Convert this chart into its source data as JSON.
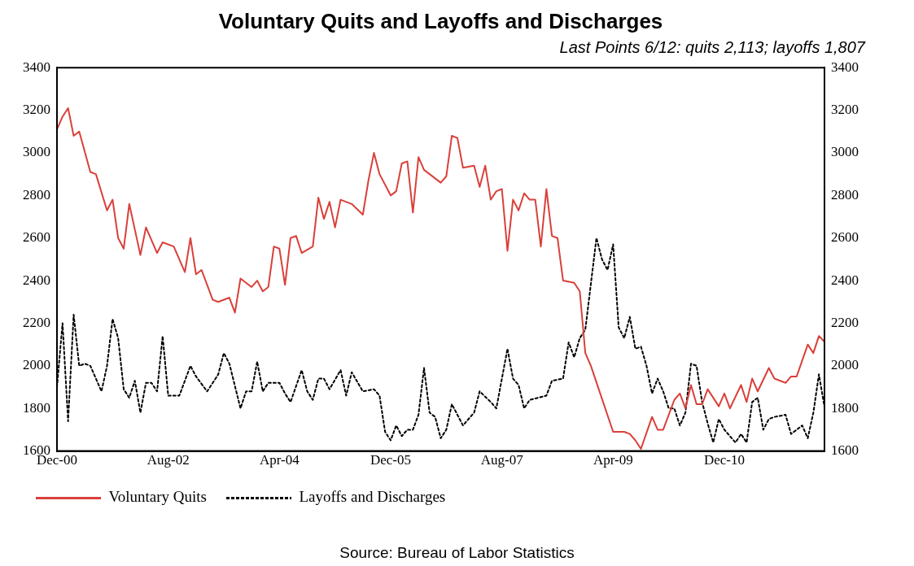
{
  "chart_data": {
    "type": "line",
    "title": "Voluntary Quits and Layoffs and Discharges",
    "subtitle": "Last Points 6/12: quits 2,113; layoffs 1,807",
    "annotations": [
      "Source: Bureau of Labor Statistics"
    ],
    "xlim": [
      "2000-12",
      "2012-06"
    ],
    "xticks": [
      {
        "value": "2000-12",
        "label": "Dec-00"
      },
      {
        "value": "2002-08",
        "label": "Aug-02"
      },
      {
        "value": "2004-04",
        "label": "Apr-04"
      },
      {
        "value": "2005-12",
        "label": "Dec-05"
      },
      {
        "value": "2007-08",
        "label": "Aug-07"
      },
      {
        "value": "2009-04",
        "label": "Apr-09"
      },
      {
        "value": "2010-12",
        "label": "Dec-10"
      }
    ],
    "ylim": [
      1600,
      3400
    ],
    "yticks": [
      1600,
      1800,
      2000,
      2200,
      2400,
      2600,
      2800,
      3000,
      3200,
      3400
    ],
    "y2lim": [
      1600,
      3400
    ],
    "y2ticks": [
      1600,
      1800,
      2000,
      2200,
      2400,
      2600,
      2800,
      3000,
      3200,
      3400
    ],
    "grid": false,
    "legend": "bottom left",
    "marker": "none",
    "series": [
      {
        "name": "Voluntary Quits",
        "color": "#d9403a",
        "line_style": "solid",
        "x": [
          "2000-12",
          "2001-01",
          "2001-02",
          "2001-03",
          "2001-04",
          "2001-06",
          "2001-07",
          "2001-09",
          "2001-10",
          "2001-11",
          "2001-12",
          "2002-01",
          "2002-03",
          "2002-04",
          "2002-06",
          "2002-07",
          "2002-09",
          "2002-11",
          "2002-12",
          "2003-01",
          "2003-02",
          "2003-04",
          "2003-05",
          "2003-07",
          "2003-08",
          "2003-09",
          "2003-11",
          "2003-12",
          "2004-01",
          "2004-02",
          "2004-03",
          "2004-04",
          "2004-05",
          "2004-06",
          "2004-07",
          "2004-08",
          "2004-10",
          "2004-11",
          "2004-12",
          "2005-01",
          "2005-02",
          "2005-03",
          "2005-05",
          "2005-07",
          "2005-08",
          "2005-09",
          "2005-10",
          "2005-12",
          "2006-01",
          "2006-02",
          "2006-03",
          "2006-04",
          "2006-05",
          "2006-06",
          "2006-07",
          "2006-09",
          "2006-10",
          "2006-11",
          "2006-12",
          "2007-01",
          "2007-03",
          "2007-04",
          "2007-05",
          "2007-06",
          "2007-07",
          "2007-08",
          "2007-09",
          "2007-10",
          "2007-11",
          "2007-12",
          "2008-01",
          "2008-02",
          "2008-03",
          "2008-04",
          "2008-05",
          "2008-06",
          "2008-07",
          "2008-09",
          "2008-10",
          "2008-11",
          "2008-12",
          "2009-04",
          "2009-06",
          "2009-07",
          "2009-08",
          "2009-09",
          "2009-11",
          "2009-12",
          "2010-01",
          "2010-03",
          "2010-04",
          "2010-05",
          "2010-06",
          "2010-07",
          "2010-08",
          "2010-09",
          "2010-11",
          "2010-12",
          "2011-01",
          "2011-03",
          "2011-04",
          "2011-05",
          "2011-06",
          "2011-08",
          "2011-09",
          "2011-11",
          "2011-12",
          "2012-01",
          "2012-03",
          "2012-04",
          "2012-05",
          "2012-06"
        ],
        "values": [
          3110,
          3170,
          3210,
          3080,
          3100,
          2910,
          2900,
          2730,
          2780,
          2600,
          2550,
          2760,
          2520,
          2650,
          2530,
          2580,
          2560,
          2440,
          2600,
          2430,
          2450,
          2310,
          2300,
          2320,
          2250,
          2410,
          2370,
          2400,
          2350,
          2370,
          2560,
          2550,
          2380,
          2600,
          2610,
          2530,
          2560,
          2790,
          2690,
          2770,
          2650,
          2780,
          2760,
          2710,
          2870,
          3000,
          2900,
          2800,
          2820,
          2950,
          2960,
          2720,
          2980,
          2920,
          2900,
          2860,
          2890,
          3080,
          3070,
          2930,
          2940,
          2840,
          2940,
          2780,
          2820,
          2830,
          2540,
          2780,
          2730,
          2810,
          2780,
          2780,
          2560,
          2830,
          2610,
          2600,
          2400,
          2390,
          2350,
          2060,
          2000,
          1690,
          1690,
          1680,
          1650,
          1610,
          1760,
          1700,
          1700,
          1840,
          1870,
          1800,
          1910,
          1820,
          1820,
          1890,
          1810,
          1870,
          1800,
          1910,
          1830,
          1940,
          1880,
          1990,
          1940,
          1920,
          1950,
          1950,
          2100,
          2060,
          2140,
          2113
        ]
      },
      {
        "name": "Layoffs and Discharges",
        "color": "#000000",
        "line_style": "dotted",
        "x": [
          "2000-12",
          "2001-01",
          "2001-02",
          "2001-03",
          "2001-04",
          "2001-05",
          "2001-06",
          "2001-08",
          "2001-09",
          "2001-10",
          "2001-11",
          "2001-12",
          "2002-01",
          "2002-02",
          "2002-03",
          "2002-04",
          "2002-05",
          "2002-06",
          "2002-07",
          "2002-08",
          "2002-10",
          "2002-12",
          "2003-01",
          "2003-03",
          "2003-05",
          "2003-06",
          "2003-07",
          "2003-09",
          "2003-10",
          "2003-11",
          "2003-12",
          "2004-01",
          "2004-02",
          "2004-04",
          "2004-05",
          "2004-06",
          "2004-08",
          "2004-09",
          "2004-10",
          "2004-11",
          "2004-12",
          "2005-01",
          "2005-03",
          "2005-04",
          "2005-05",
          "2005-07",
          "2005-09",
          "2005-10",
          "2005-11",
          "2005-12",
          "2006-01",
          "2006-02",
          "2006-03",
          "2006-04",
          "2006-05",
          "2006-06",
          "2006-07",
          "2006-08",
          "2006-09",
          "2006-10",
          "2006-11",
          "2007-01",
          "2007-03",
          "2007-04",
          "2007-06",
          "2007-07",
          "2007-09",
          "2007-10",
          "2007-11",
          "2007-12",
          "2008-01",
          "2008-04",
          "2008-05",
          "2008-07",
          "2008-08",
          "2008-09",
          "2008-10",
          "2008-11",
          "2009-01",
          "2009-02",
          "2009-03",
          "2009-04",
          "2009-05",
          "2009-06",
          "2009-07",
          "2009-08",
          "2009-09",
          "2009-10",
          "2009-11",
          "2009-12",
          "2010-01",
          "2010-02",
          "2010-03",
          "2010-04",
          "2010-05",
          "2010-06",
          "2010-07",
          "2010-08",
          "2010-09",
          "2010-10",
          "2010-11",
          "2010-12",
          "2011-02",
          "2011-03",
          "2011-04",
          "2011-05",
          "2011-06",
          "2011-07",
          "2011-08",
          "2011-09",
          "2011-11",
          "2011-12",
          "2012-02",
          "2012-03",
          "2012-04",
          "2012-05",
          "2012-06"
        ],
        "values": [
          1900,
          2200,
          1740,
          2240,
          2000,
          2010,
          2000,
          1880,
          2000,
          2220,
          2130,
          1890,
          1850,
          1930,
          1780,
          1920,
          1920,
          1880,
          2140,
          1860,
          1860,
          2000,
          1950,
          1880,
          1960,
          2060,
          2010,
          1800,
          1880,
          1880,
          2020,
          1880,
          1920,
          1920,
          1870,
          1830,
          1980,
          1880,
          1840,
          1940,
          1940,
          1890,
          1980,
          1860,
          1970,
          1880,
          1890,
          1860,
          1690,
          1650,
          1720,
          1670,
          1700,
          1700,
          1770,
          1990,
          1780,
          1760,
          1660,
          1700,
          1820,
          1720,
          1780,
          1880,
          1830,
          1800,
          2080,
          1940,
          1910,
          1800,
          1840,
          1860,
          1930,
          1940,
          2110,
          2040,
          2130,
          2170,
          2600,
          2500,
          2450,
          2570,
          2180,
          2130,
          2230,
          2080,
          2090,
          2000,
          1870,
          1940,
          1880,
          1800,
          1800,
          1720,
          1780,
          2010,
          2000,
          1830,
          1730,
          1640,
          1750,
          1700,
          1640,
          1680,
          1640,
          1830,
          1850,
          1700,
          1750,
          1760,
          1770,
          1680,
          1720,
          1660,
          1780,
          1960,
          1807
        ]
      }
    ]
  }
}
